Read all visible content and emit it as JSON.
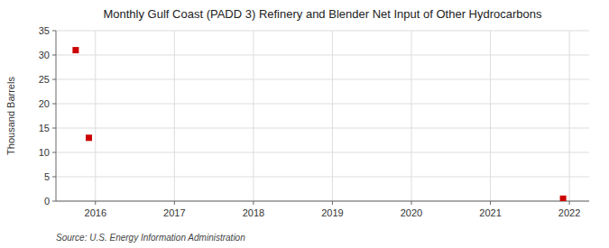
{
  "chart_data": {
    "type": "scatter",
    "title": "Monthly Gulf Coast (PADD 3) Refinery and Blender Net Input of Other Hydrocarbons",
    "ylabel": "Thousand Barrels",
    "source": "Source: U.S. Energy Information Administration",
    "x": [
      2015.75,
      2015.917,
      2021.92
    ],
    "values": [
      31,
      13,
      0.5
    ],
    "color": "#cc0000",
    "marker": "square",
    "xlim": [
      2015.5,
      2022.25
    ],
    "ylim": [
      0,
      35
    ],
    "xticks": [
      2016,
      2017,
      2018,
      2019,
      2020,
      2021,
      2022
    ],
    "yticks": [
      0,
      5,
      10,
      15,
      20,
      25,
      30,
      35
    ],
    "grid": true
  }
}
